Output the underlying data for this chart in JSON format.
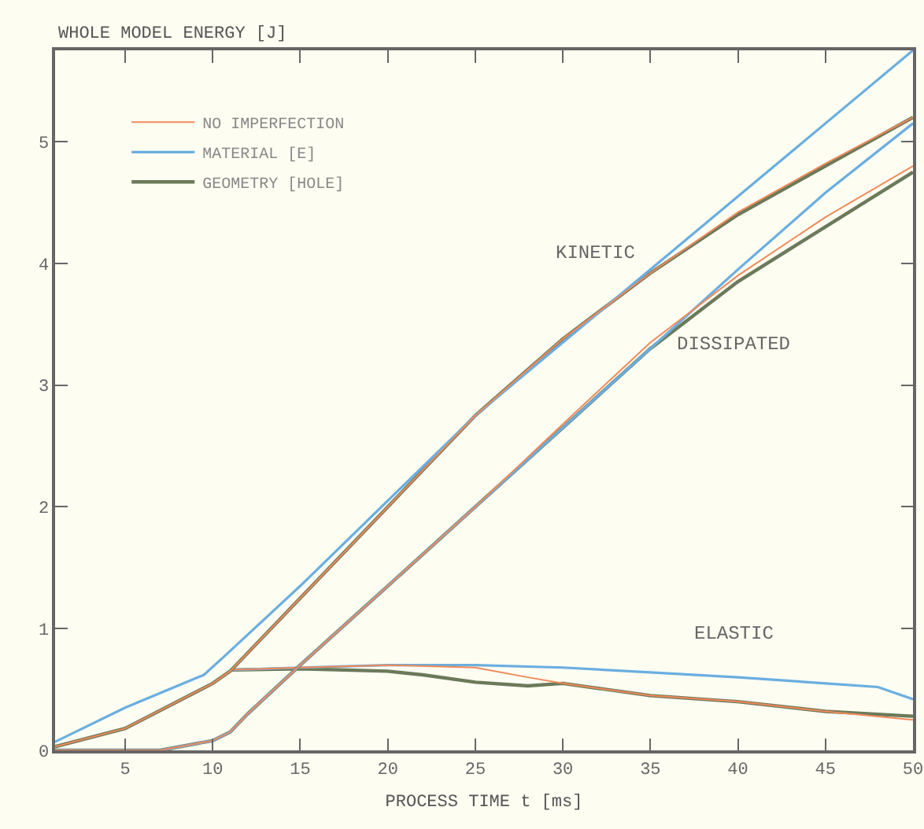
{
  "chart_data": {
    "type": "line",
    "ylabel": "WHOLE MODEL ENERGY [J]",
    "xlabel": "PROCESS TIME t [ms]",
    "xlim": [
      1,
      50
    ],
    "xticks": [
      5,
      10,
      15,
      20,
      25,
      30,
      35,
      40,
      45,
      50
    ],
    "ylim": [
      0,
      5.75
    ],
    "yticks": [
      0,
      1,
      2,
      3,
      4,
      5
    ],
    "grid": false,
    "legend": "top left",
    "marker": "none",
    "line_style": "solid",
    "annotations": [
      "KINETIC",
      "DISSIPATED",
      "ELASTIC"
    ],
    "series": [
      {
        "name": "NO IMPERFECTION",
        "color": "#f08a5a",
        "x": [
          1,
          5,
          10,
          11,
          15,
          20,
          25,
          30,
          35,
          40,
          45,
          50
        ],
        "values": [
          0.03,
          0.18,
          0.55,
          0.65,
          1.25,
          2.0,
          2.75,
          3.38,
          3.92,
          4.42,
          4.82,
          5.2
        ]
      },
      {
        "name": "MATERIAL [E]",
        "color": "#6aaee0",
        "x": [
          1,
          5,
          9.5,
          10.5,
          15,
          20,
          25,
          50
        ],
        "values": [
          0.07,
          0.35,
          0.62,
          0.75,
          1.35,
          2.05,
          2.75,
          5.75
        ]
      },
      {
        "name": "GEOMETRY [HOLE]",
        "color": "#6b7a5a",
        "x": [
          1,
          5,
          10,
          11,
          15,
          20,
          25,
          30,
          35,
          40,
          45,
          50
        ],
        "values": [
          0.03,
          0.18,
          0.55,
          0.65,
          1.25,
          2.0,
          2.75,
          3.38,
          3.92,
          4.4,
          4.8,
          5.2
        ]
      },
      {
        "color": "#f08a5a",
        "x": [
          1,
          7,
          10,
          11,
          12,
          15,
          20,
          25,
          30,
          35,
          40,
          45,
          50
        ],
        "values": [
          0,
          0,
          0.08,
          0.15,
          0.3,
          0.7,
          1.35,
          2.0,
          2.68,
          3.35,
          3.9,
          4.38,
          4.8
        ]
      },
      {
        "color": "#6aaee0",
        "x": [
          1,
          7,
          10,
          11,
          12,
          15,
          20,
          25,
          30,
          35,
          40,
          45,
          50
        ],
        "values": [
          0,
          0,
          0.08,
          0.15,
          0.3,
          0.7,
          1.35,
          2.0,
          2.65,
          3.3,
          3.95,
          4.58,
          5.15
        ]
      },
      {
        "color": "#6b7a5a",
        "x": [
          1,
          7,
          10,
          11,
          12,
          15,
          20,
          25,
          30,
          35,
          40,
          45,
          50
        ],
        "values": [
          0,
          0,
          0.08,
          0.15,
          0.3,
          0.7,
          1.35,
          2.0,
          2.65,
          3.3,
          3.85,
          4.3,
          4.75
        ]
      },
      {
        "color": "#f08a5a",
        "x": [
          11,
          15,
          20,
          25,
          28,
          30,
          35,
          40,
          45,
          50
        ],
        "values": [
          0.66,
          0.68,
          0.7,
          0.68,
          0.6,
          0.55,
          0.45,
          0.4,
          0.32,
          0.25
        ]
      },
      {
        "color": "#6aaee0",
        "x": [
          11,
          15,
          20,
          25,
          30,
          35,
          40,
          45,
          48,
          50
        ],
        "values": [
          0.66,
          0.68,
          0.7,
          0.7,
          0.68,
          0.64,
          0.6,
          0.55,
          0.52,
          0.42
        ]
      },
      {
        "color": "#6b7a5a",
        "x": [
          11,
          15,
          20,
          22,
          25,
          28,
          30,
          35,
          40,
          45,
          50
        ],
        "values": [
          0.66,
          0.67,
          0.65,
          0.62,
          0.56,
          0.53,
          0.55,
          0.45,
          0.4,
          0.32,
          0.28
        ]
      }
    ]
  }
}
